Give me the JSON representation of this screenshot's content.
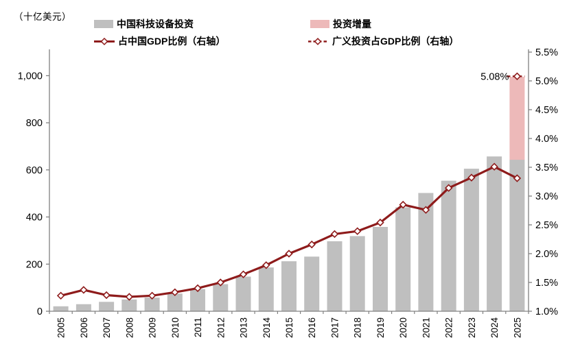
{
  "header": {
    "unit_label": "（十亿美元）"
  },
  "legend": {
    "items": [
      {
        "label": "中国科技设备投资",
        "swatch": "bar",
        "color": "#BFBFBF"
      },
      {
        "label": "投资增量",
        "swatch": "bar",
        "color": "#EDB9B9"
      },
      {
        "label": "占中国GDP比例（右轴）",
        "swatch": "line-diamond",
        "color": "#8E1B1B"
      },
      {
        "label": "广义投资占GDP比例（右轴）",
        "swatch": "dashed-line-diamond",
        "color": "#8E1B1B"
      }
    ]
  },
  "chart_data": {
    "type": "combo-bar-line",
    "title": "",
    "categories": [
      "2005",
      "2006",
      "2007",
      "2008",
      "2009",
      "2010",
      "2011",
      "2012",
      "2013",
      "2014",
      "2015",
      "2016",
      "2017",
      "2018",
      "2019",
      "2020",
      "2021",
      "2022",
      "2023",
      "2024",
      "2025"
    ],
    "series": [
      {
        "name": "中国科技设备投资",
        "type": "bar",
        "axis": "left",
        "color": "#BFBFBF",
        "values": [
          21,
          30,
          40,
          50,
          58,
          75,
          94,
          115,
          147,
          186,
          212,
          232,
          297,
          319,
          358,
          441,
          502,
          554,
          605,
          657,
          643
        ]
      },
      {
        "name": "投资增量",
        "type": "bar-stacked-increment",
        "axis": "left",
        "color": "#EDB9B9",
        "values": [
          0,
          0,
          0,
          0,
          0,
          0,
          0,
          0,
          0,
          0,
          0,
          0,
          0,
          0,
          0,
          0,
          0,
          0,
          0,
          0,
          352
        ]
      },
      {
        "name": "占中国GDP比例（右轴）",
        "type": "line",
        "axis": "right",
        "color": "#8E1B1B",
        "marker": "open-diamond",
        "values": [
          1.27,
          1.37,
          1.28,
          1.25,
          1.27,
          1.33,
          1.4,
          1.5,
          1.64,
          1.8,
          2.0,
          2.16,
          2.34,
          2.39,
          2.54,
          2.85,
          2.76,
          3.14,
          3.32,
          3.51,
          3.31
        ]
      },
      {
        "name": "广义投资占GDP比例（右轴）",
        "type": "line-dashed",
        "axis": "right",
        "color": "#8E1B1B",
        "marker": "open-diamond",
        "values": [
          null,
          null,
          null,
          null,
          null,
          null,
          null,
          null,
          null,
          null,
          null,
          null,
          null,
          null,
          null,
          null,
          null,
          null,
          null,
          null,
          5.08
        ]
      }
    ],
    "left_axis": {
      "min": 0,
      "max": 1100,
      "ticks": [
        0,
        200,
        400,
        600,
        800,
        1000
      ],
      "tick_labels": [
        "0",
        "200",
        "400",
        "600",
        "800",
        "1,000"
      ]
    },
    "right_axis": {
      "min": 1.0,
      "max": 5.5,
      "ticks": [
        1.0,
        1.5,
        2.0,
        2.5,
        3.0,
        3.5,
        4.0,
        4.5,
        5.0,
        5.5
      ],
      "tick_labels": [
        "1.0%",
        "1.5%",
        "2.0%",
        "2.5%",
        "3.0%",
        "3.5%",
        "4.0%",
        "4.5%",
        "5.0%",
        "5.5%"
      ]
    },
    "annotation": {
      "text": "5.08%",
      "category": "2025",
      "value": 5.08,
      "series": "广义投资占GDP比例（右轴）"
    },
    "grid": false,
    "legend_position": "top",
    "axis_color": "#808080"
  }
}
